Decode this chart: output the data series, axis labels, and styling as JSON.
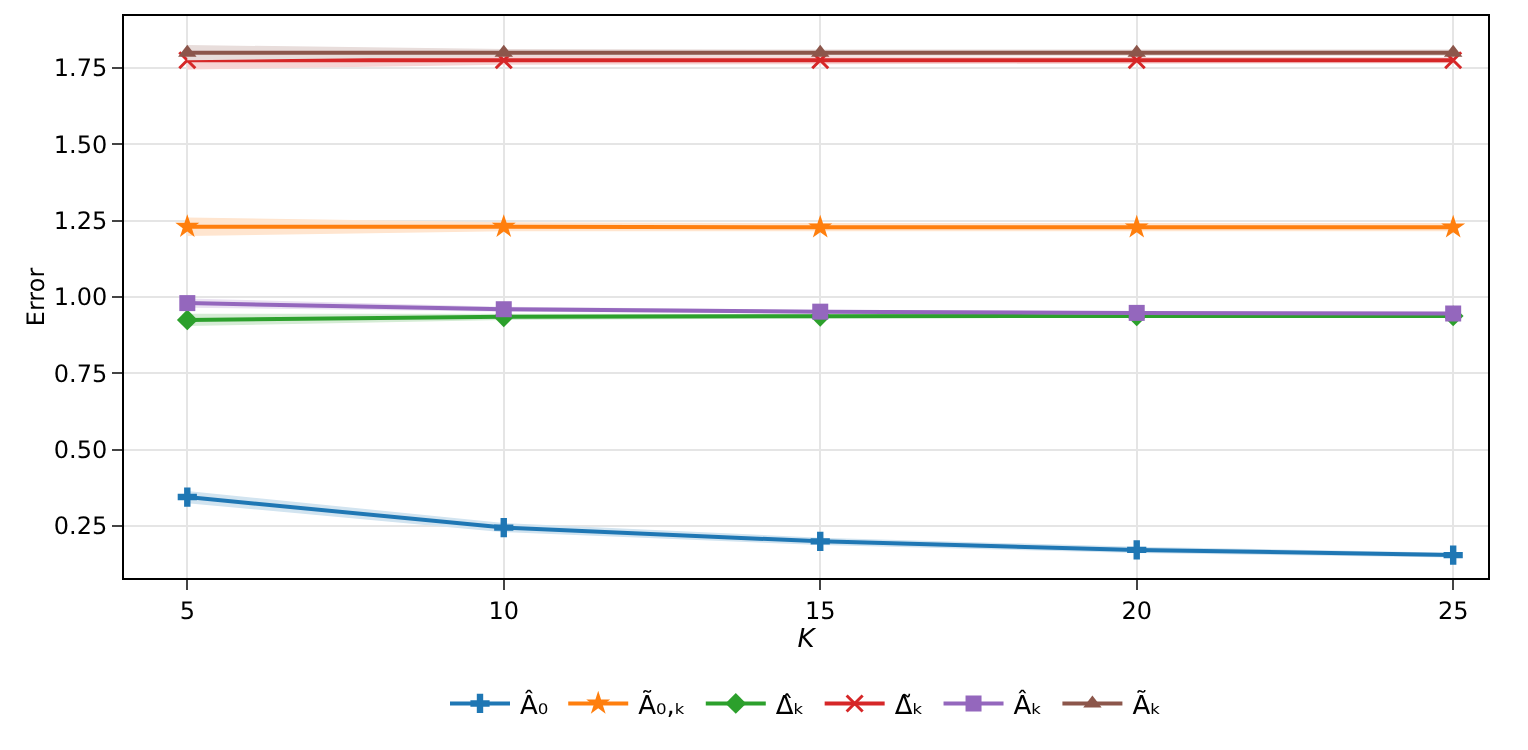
{
  "chart_data": {
    "type": "line",
    "xlabel": "K",
    "ylabel": "Error",
    "x": [
      5,
      10,
      15,
      20,
      25
    ],
    "xlim": [
      4,
      25.55
    ],
    "xticks": [
      5,
      10,
      15,
      20,
      25
    ],
    "ylim": [
      0.08,
      1.92
    ],
    "yticks": [
      {
        "value": 0.25,
        "label": "0.25"
      },
      {
        "value": 0.5,
        "label": "0.50"
      },
      {
        "value": 0.75,
        "label": "0.75"
      },
      {
        "value": 1,
        "label": "1.00"
      },
      {
        "value": 1.25,
        "label": "1.25"
      },
      {
        "value": 1.5,
        "label": "1.50"
      },
      {
        "value": 1.75,
        "label": "1.75"
      }
    ],
    "grid": true,
    "legend": "bottom",
    "line_style": "solid",
    "series": [
      {
        "name": "Â₀",
        "color": "#1f77b4",
        "marker": "cross",
        "values": [
          0.345,
          0.245,
          0.2,
          0.172,
          0.155
        ],
        "lower": [
          0.325,
          0.23,
          0.188,
          0.162,
          0.147
        ],
        "upper": [
          0.365,
          0.26,
          0.212,
          0.182,
          0.163
        ]
      },
      {
        "name": "Ã₀,ₖ",
        "color": "#ff7f0e",
        "marker": "star",
        "values": [
          1.23,
          1.23,
          1.228,
          1.228,
          1.228
        ],
        "lower": [
          1.2,
          1.215,
          1.215,
          1.215,
          1.215
        ],
        "upper": [
          1.26,
          1.245,
          1.242,
          1.242,
          1.242
        ]
      },
      {
        "name": "Δ̂ₖ",
        "color": "#2ca02c",
        "marker": "diamond",
        "values": [
          0.925,
          0.935,
          0.937,
          0.938,
          0.938
        ],
        "lower": [
          0.905,
          0.925,
          0.93,
          0.932,
          0.932
        ],
        "upper": [
          0.945,
          0.945,
          0.944,
          0.944,
          0.944
        ]
      },
      {
        "name": "Δ̃ₖ",
        "color": "#d62728",
        "marker": "x",
        "values": [
          1.775,
          1.775,
          1.775,
          1.775,
          1.775
        ],
        "lower": [
          1.745,
          1.76,
          1.762,
          1.764,
          1.765
        ],
        "upper": [
          1.805,
          1.79,
          1.788,
          1.786,
          1.785
        ]
      },
      {
        "name": "Âₖ",
        "color": "#9467bd",
        "marker": "square",
        "values": [
          0.98,
          0.96,
          0.952,
          0.948,
          0.946
        ],
        "lower": [
          0.965,
          0.952,
          0.946,
          0.943,
          0.941
        ],
        "upper": [
          0.995,
          0.968,
          0.958,
          0.953,
          0.951
        ]
      },
      {
        "name": "Ãₖ",
        "color": "#8c564b",
        "marker": "triangle",
        "values": [
          1.8,
          1.8,
          1.8,
          1.8,
          1.8
        ],
        "lower": [
          1.775,
          1.788,
          1.79,
          1.79,
          1.79
        ],
        "upper": [
          1.825,
          1.812,
          1.81,
          1.81,
          1.81
        ]
      }
    ]
  }
}
